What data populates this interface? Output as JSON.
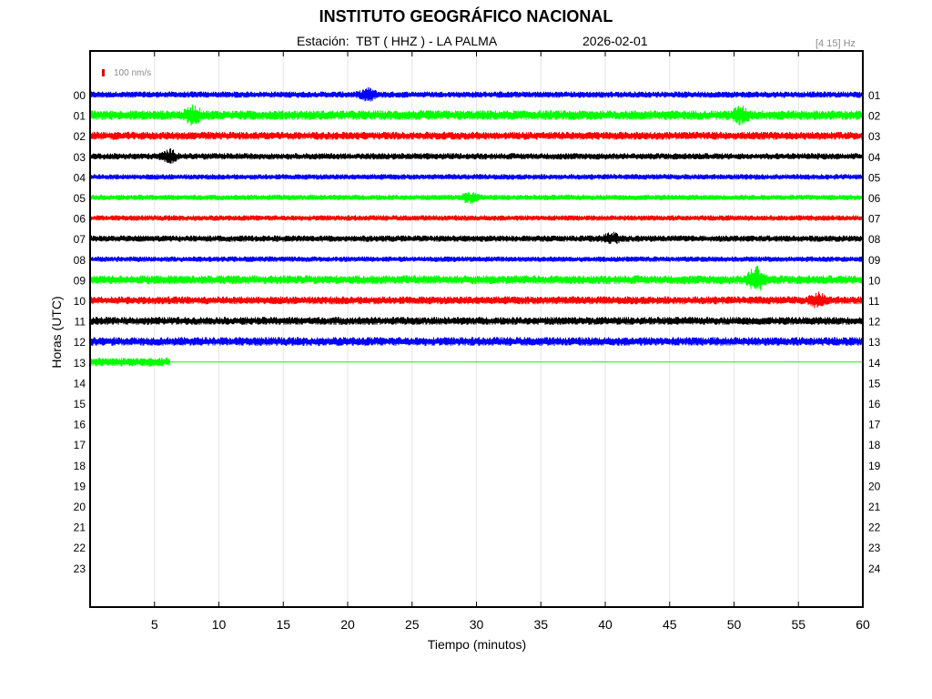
{
  "header": {
    "title": "INSTITUTO GEOGRÁFICO NACIONAL",
    "station": "Estación:  TBT ( HHZ ) - LA PALMA",
    "date": "2026-02-01",
    "band": "[4 15] Hz"
  },
  "colors": {
    "blue": "#0000ff",
    "green": "#00ff00",
    "red": "#ff0000",
    "black": "#000000",
    "grid": "#e6e6e6",
    "scale": "#e00000"
  },
  "chart_data": {
    "type": "line",
    "title": "INSTITUTO GEOGRÁFICO NACIONAL",
    "subtitle": "Estación:  TBT ( HHZ ) - LA PALMA",
    "xlabel": "Tiempo (minutos)",
    "ylabel": "Horas (UTC)",
    "scale_label": "100 nm/s",
    "xlim": [
      0,
      60
    ],
    "x_ticks": [
      5,
      10,
      15,
      20,
      25,
      30,
      35,
      40,
      45,
      50,
      55,
      60
    ],
    "y_ticks_left": [
      "00",
      "01",
      "02",
      "03",
      "04",
      "05",
      "06",
      "07",
      "08",
      "09",
      "10",
      "11",
      "12",
      "13",
      "14",
      "15",
      "16",
      "17",
      "18",
      "19",
      "20",
      "21",
      "22",
      "23"
    ],
    "y_ticks_right": [
      "01",
      "02",
      "03",
      "04",
      "05",
      "06",
      "07",
      "08",
      "09",
      "10",
      "11",
      "12",
      "13",
      "14",
      "15",
      "16",
      "17",
      "18",
      "19",
      "20",
      "21",
      "22",
      "23",
      "24"
    ],
    "grid": "vertical",
    "color_cycle": [
      "blue",
      "green",
      "red",
      "black"
    ],
    "series": [
      {
        "hour": "00",
        "start_min": 0,
        "end_min": 60,
        "amplitude": 0.35,
        "events": [
          {
            "minute": 21.6,
            "amplitude": 0.55
          }
        ]
      },
      {
        "hour": "01",
        "start_min": 0,
        "end_min": 60,
        "amplitude": 0.55,
        "events": [
          {
            "minute": 8,
            "amplitude": 0.8
          },
          {
            "minute": 50.5,
            "amplitude": 0.7
          }
        ]
      },
      {
        "hour": "02",
        "start_min": 0,
        "end_min": 60,
        "amplitude": 0.45,
        "events": []
      },
      {
        "hour": "03",
        "start_min": 0,
        "end_min": 60,
        "amplitude": 0.35,
        "events": [
          {
            "minute": 6.2,
            "amplitude": 0.6
          }
        ]
      },
      {
        "hour": "04",
        "start_min": 0,
        "end_min": 60,
        "amplitude": 0.3,
        "events": []
      },
      {
        "hour": "05",
        "start_min": 0,
        "end_min": 60,
        "amplitude": 0.3,
        "events": [
          {
            "minute": 29.5,
            "amplitude": 0.5
          }
        ]
      },
      {
        "hour": "06",
        "start_min": 0,
        "end_min": 60,
        "amplitude": 0.3,
        "events": []
      },
      {
        "hour": "07",
        "start_min": 0,
        "end_min": 60,
        "amplitude": 0.35,
        "events": [
          {
            "minute": 40.5,
            "amplitude": 0.55
          }
        ]
      },
      {
        "hour": "08",
        "start_min": 0,
        "end_min": 60,
        "amplitude": 0.3,
        "events": []
      },
      {
        "hour": "09",
        "start_min": 0,
        "end_min": 60,
        "amplitude": 0.5,
        "events": [
          {
            "minute": 51.7,
            "amplitude": 1.4
          }
        ]
      },
      {
        "hour": "10",
        "start_min": 0,
        "end_min": 60,
        "amplitude": 0.45,
        "events": [
          {
            "minute": 56.5,
            "amplitude": 0.6
          }
        ]
      },
      {
        "hour": "11",
        "start_min": 0,
        "end_min": 60,
        "amplitude": 0.45,
        "events": []
      },
      {
        "hour": "12",
        "start_min": 0,
        "end_min": 60,
        "amplitude": 0.5,
        "events": []
      },
      {
        "hour": "13",
        "start_min": 0,
        "end_min": 6.2,
        "amplitude": 0.5,
        "events": []
      }
    ]
  }
}
